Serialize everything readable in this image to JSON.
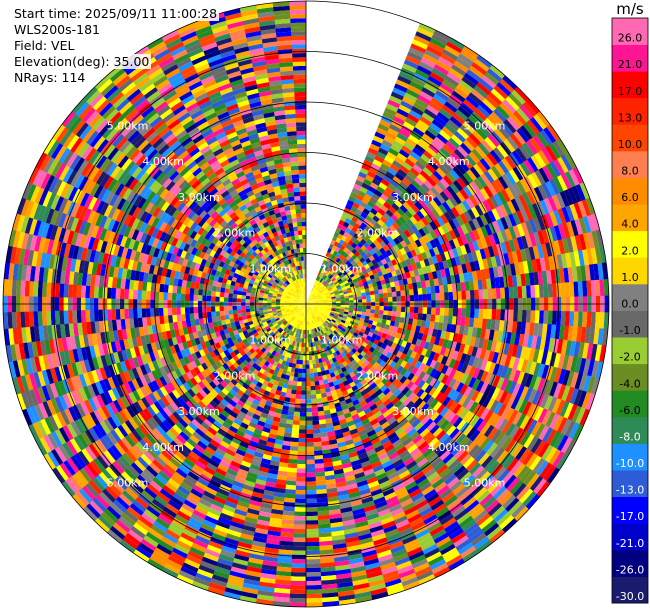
{
  "info": {
    "start_time": "Start time: 2025/09/11 11:00:28",
    "station": "WLS200s-181",
    "field": "Field: VEL",
    "elevation": "Elevation(deg): 35.00",
    "nrays": "NRays: 114"
  },
  "colorbar": {
    "unit": "m/s",
    "colors": [
      "#1a1a6e",
      "#000080",
      "#0000cd",
      "#0000ff",
      "#2e5cd6",
      "#1e90ff",
      "#2e8b57",
      "#228b22",
      "#6b8e23",
      "#9acd32",
      "#696969",
      "#808080",
      "#ffd700",
      "#ffff00",
      "#ffa500",
      "#ff8c00",
      "#ff7f50",
      "#ff4500",
      "#ff2400",
      "#ff0000",
      "#ff1493",
      "#ff69b4"
    ],
    "tick_labels": [
      "-30.0",
      "-26.0",
      "-21.0",
      "-17.0",
      "-13.0",
      "-10.0",
      "-8.0",
      "-6.0",
      "-4.0",
      "-2.0",
      "-1.0",
      "0.0",
      "1.0",
      "2.0",
      "4.0",
      "6.0",
      "8.0",
      "10.0",
      "13.0",
      "17.0",
      "21.0",
      "26.0"
    ]
  },
  "chart_data": {
    "type": "heatmap",
    "projection": "polar PPI",
    "field": "VEL",
    "units": "m/s",
    "elevation_deg": 35.0,
    "n_rays": 114,
    "max_range_km": 6.0,
    "range_rings_km": [
      1.0,
      2.0,
      3.0,
      4.0,
      5.0,
      6.0
    ],
    "ring_labels": [
      "1.00km",
      "2.00km",
      "3.00km",
      "4.00km",
      "5.00km"
    ],
    "missing_sector_az_deg": [
      0,
      22
    ],
    "vmin": -30.0,
    "vmax": 30.0,
    "near_range_description": "weak velocities (~0 to 2 m/s, yellow/green) within ~1 km; random noise (all colours) beyond"
  }
}
